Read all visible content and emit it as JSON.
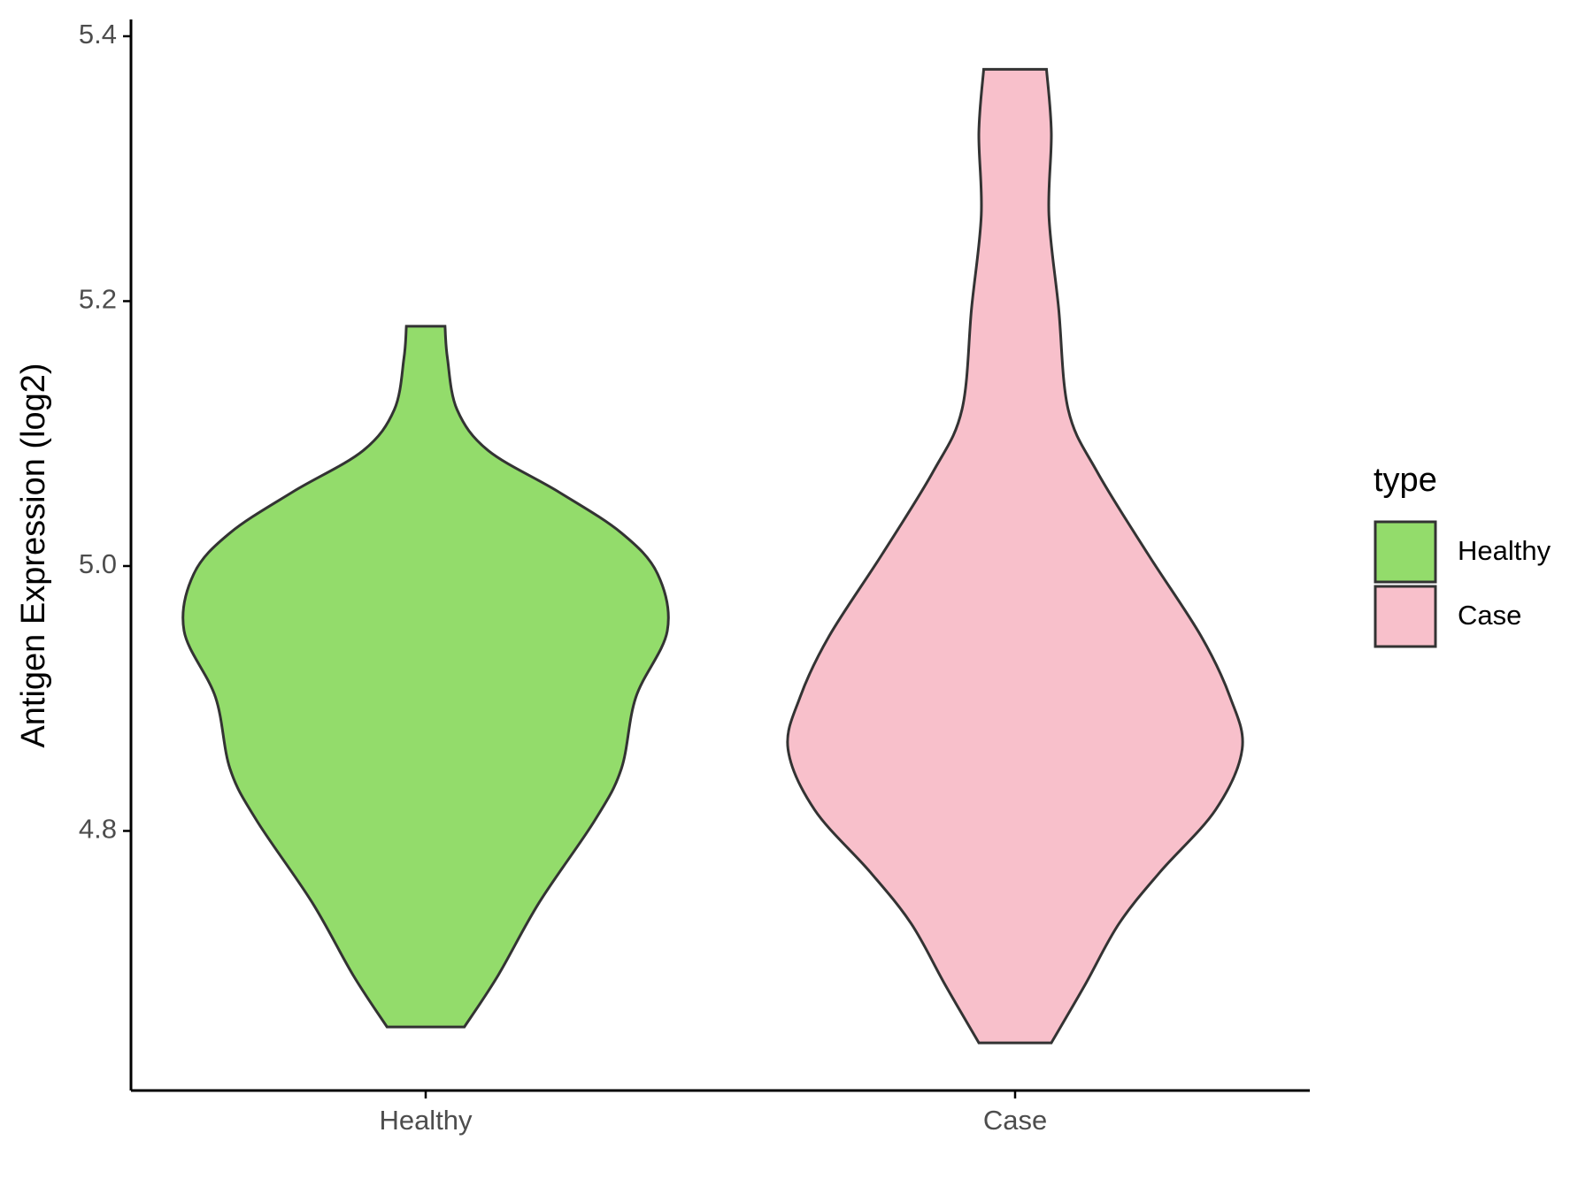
{
  "chart_data": {
    "type": "violin",
    "y_label": "Antigen Expression (log2)",
    "categories": [
      "Healthy",
      "Case"
    ],
    "ylim": [
      4.604,
      5.412
    ],
    "yticks": [
      4.8,
      {
        "value": 5.0,
        "label": "5.0"
      },
      5.2,
      5.4
    ],
    "legend": {
      "title": "type",
      "position": "right"
    },
    "series": [
      {
        "name": "Healthy",
        "color": "#93dc6b",
        "y": [
          5.181,
          5.157,
          5.118,
          5.087,
          5.056,
          5.025,
          4.994,
          4.951,
          4.901,
          4.847,
          4.808,
          4.746,
          4.691,
          4.652
        ],
        "density": [
          0.08,
          0.09,
          0.13,
          0.26,
          0.55,
          0.81,
          0.96,
          1,
          0.87,
          0.81,
          0.7,
          0.47,
          0.3,
          0.16
        ]
      },
      {
        "name": "Case",
        "color": "#f8c0cb",
        "y": [
          5.375,
          5.327,
          5.265,
          5.195,
          5.118,
          5.071,
          5.009,
          4.947,
          4.901,
          4.862,
          4.816,
          4.769,
          4.73,
          4.684,
          4.64
        ],
        "density": [
          0.13,
          0.15,
          0.14,
          0.18,
          0.22,
          0.34,
          0.55,
          0.77,
          0.89,
          0.94,
          0.83,
          0.6,
          0.43,
          0.29,
          0.15
        ]
      }
    ]
  }
}
